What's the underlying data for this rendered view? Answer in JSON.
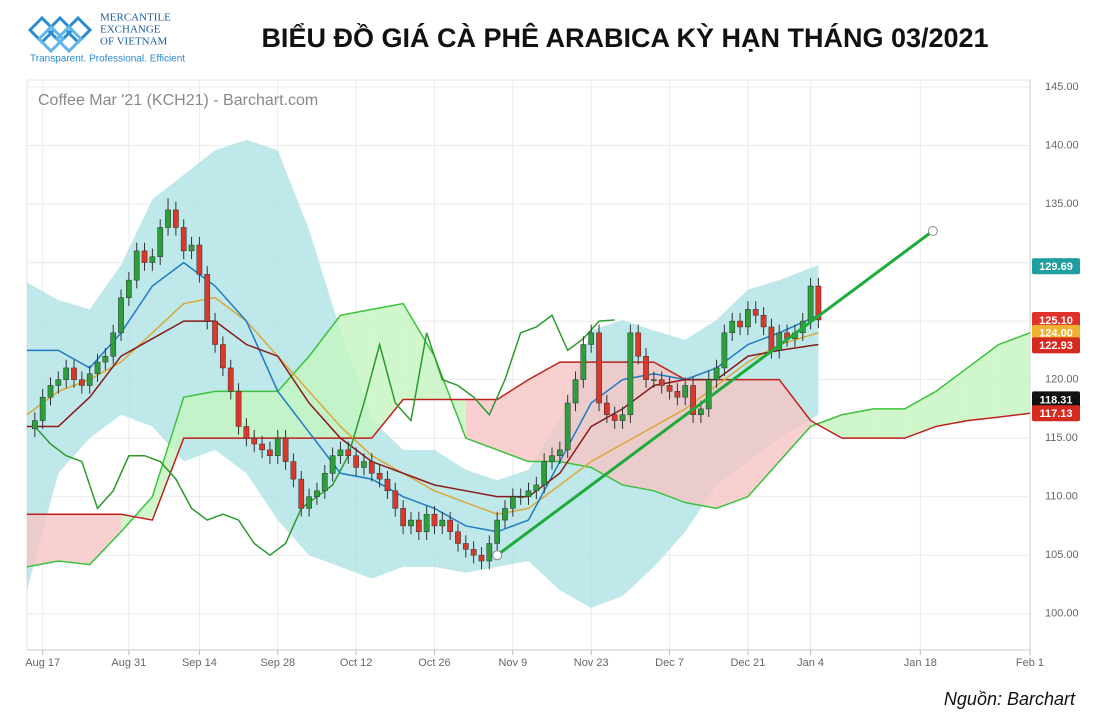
{
  "logo": {
    "line1": "MERCANTILE",
    "line2": "EXCHANGE",
    "line3": "OF VIETNAM",
    "slogan": "Transparent. Professional. Efficient"
  },
  "source": "Nguồn: Barchart",
  "chart_data": {
    "type": "candlestick",
    "title": "BIỂU ĐỒ GIÁ CÀ PHÊ ARABICA KỲ HẠN THÁNG 03/2021",
    "subtitle": "Coffee Mar '21 (KCH21) - Barchart.com",
    "xlim": [
      -2,
      126
    ],
    "xticks": [
      {
        "value": 0,
        "label": "Aug 17"
      },
      {
        "value": 11,
        "label": "Aug 31"
      },
      {
        "value": 20,
        "label": "Sep 14"
      },
      {
        "value": 30,
        "label": "Sep 28"
      },
      {
        "value": 40,
        "label": "Oct 12"
      },
      {
        "value": 50,
        "label": "Oct 26"
      },
      {
        "value": 60,
        "label": "Nov 9"
      },
      {
        "value": 70,
        "label": "Nov 23"
      },
      {
        "value": 80,
        "label": "Dec 7"
      },
      {
        "value": 90,
        "label": "Dec 21"
      },
      {
        "value": 98,
        "label": "Jan 4"
      },
      {
        "value": 112,
        "label": "Jan 18"
      },
      {
        "value": 126,
        "label": "Feb 1"
      }
    ],
    "ylim": [
      96.9,
      145.6
    ],
    "yticks": [
      {
        "value": 100,
        "label": "100.00"
      },
      {
        "value": 105,
        "label": "105.00"
      },
      {
        "value": 110,
        "label": "110.00"
      },
      {
        "value": 115,
        "label": "115.00"
      },
      {
        "value": 120,
        "label": "120.00"
      },
      {
        "value": 125,
        "label": "125.00"
      },
      {
        "value": 130,
        "label": "130.00"
      },
      {
        "value": 135,
        "label": "135.00"
      },
      {
        "value": 140,
        "label": "140.00"
      },
      {
        "value": 145,
        "label": "145.00"
      }
    ],
    "grid": true,
    "up_color": "#2e9e3c",
    "down_color": "#d9382b",
    "candles": {
      "x": [
        -1,
        0,
        1,
        2,
        3,
        4,
        5,
        6,
        7,
        8,
        9,
        10,
        11,
        12,
        13,
        14,
        15,
        16,
        17,
        18,
        19,
        20,
        21,
        22,
        23,
        24,
        25,
        26,
        27,
        28,
        29,
        30,
        31,
        32,
        33,
        34,
        35,
        36,
        37,
        38,
        39,
        40,
        41,
        42,
        43,
        44,
        45,
        46,
        47,
        48,
        49,
        50,
        51,
        52,
        53,
        54,
        55,
        56,
        57,
        58,
        59,
        60,
        61,
        62,
        63,
        64,
        65,
        66,
        67,
        68,
        69,
        70,
        71,
        72,
        73,
        74,
        75,
        76,
        77,
        78,
        79,
        80,
        81,
        82,
        83,
        84,
        85,
        86,
        87,
        88,
        89,
        90,
        91,
        92,
        93,
        94,
        95,
        96,
        97,
        98,
        99
      ],
      "open": [
        115.8,
        116.5,
        118.5,
        119.5,
        120,
        121,
        120,
        119.5,
        120.5,
        121.5,
        122,
        124,
        127,
        128.5,
        131,
        130,
        130.5,
        133,
        134.5,
        133,
        131,
        131.5,
        129,
        125,
        123,
        121,
        119,
        116,
        115,
        114.5,
        114,
        113.5,
        115,
        113,
        111.5,
        109,
        110,
        110.5,
        112,
        113.5,
        114,
        113.5,
        112.5,
        113,
        112,
        111.5,
        110.5,
        109,
        107.5,
        108,
        107,
        108.5,
        107.5,
        108,
        107,
        106,
        105.5,
        105,
        104.5,
        106,
        108,
        109,
        110,
        110,
        110.5,
        111,
        113,
        113.5,
        114,
        118,
        120,
        123,
        124,
        118,
        117,
        116.5,
        117,
        124,
        122,
        120,
        120,
        119.5,
        119,
        118.5,
        119.5,
        117,
        117.5,
        120,
        121,
        124,
        125,
        124.5,
        126,
        125.5,
        124.5,
        122.5,
        124,
        123.5,
        124,
        125,
        128
      ],
      "high": [
        117.2,
        119.2,
        120.2,
        120.7,
        121.7,
        121.7,
        120.7,
        121.2,
        122.2,
        122.7,
        124.7,
        127.7,
        129.2,
        131.7,
        131.7,
        131.2,
        133.7,
        135.5,
        135.2,
        133.7,
        132.2,
        132.2,
        129.7,
        125.7,
        123.7,
        121.7,
        119.7,
        116.7,
        115.7,
        115.2,
        114.7,
        115.7,
        115.7,
        113.7,
        112.2,
        110.7,
        111.2,
        112.7,
        114.2,
        114.7,
        114.7,
        114.2,
        113.7,
        113.7,
        112.7,
        112.2,
        111.2,
        109.7,
        108.7,
        108.7,
        109.2,
        109.2,
        108.7,
        108.7,
        107.7,
        106.7,
        106.2,
        105.7,
        106.7,
        108.7,
        109.7,
        110.7,
        110.7,
        111.2,
        111.7,
        113.7,
        114.2,
        114.7,
        118.7,
        120.7,
        123.7,
        124.7,
        124.7,
        118.7,
        117.7,
        117.7,
        124.7,
        124.7,
        122.7,
        120.7,
        120.7,
        120.2,
        119.7,
        120.2,
        120.2,
        118.2,
        120.7,
        121.7,
        124.7,
        125.7,
        125.7,
        126.7,
        126.7,
        126.2,
        125.2,
        124.7,
        124.7,
        124.7,
        125.7,
        128.7,
        128.7
      ],
      "low": [
        115.1,
        115.8,
        117.8,
        118.8,
        119.3,
        119.3,
        118.8,
        118.8,
        119.8,
        120.8,
        121.3,
        123.3,
        126.3,
        127.8,
        129.3,
        129.3,
        129.8,
        132.3,
        132.3,
        130.3,
        130.3,
        128.3,
        124.3,
        122.3,
        120.3,
        118.3,
        115.3,
        114.3,
        113.8,
        113.3,
        112.8,
        112.8,
        112.3,
        110.8,
        108.3,
        108.3,
        109.3,
        109.8,
        111.3,
        112.8,
        112.8,
        111.8,
        111.8,
        111.3,
        110.8,
        109.8,
        108.3,
        106.8,
        106.8,
        106.3,
        106.3,
        106.8,
        106.8,
        106.3,
        105.3,
        104.8,
        104.3,
        103.8,
        103.8,
        105.3,
        107.3,
        108.3,
        109.3,
        109.3,
        109.8,
        110.3,
        112.3,
        112.8,
        113.3,
        117.3,
        119.3,
        122.3,
        117.3,
        116.3,
        115.8,
        115.8,
        116.3,
        121.3,
        119.3,
        119.3,
        118.8,
        118.3,
        117.8,
        117.8,
        116.3,
        116.3,
        116.8,
        119.3,
        120.3,
        123.3,
        123.8,
        123.8,
        124.8,
        123.8,
        121.8,
        121.8,
        122.8,
        122.8,
        123.3,
        124.3,
        124.4
      ],
      "close": [
        116.5,
        118.5,
        119.5,
        120,
        121,
        120,
        119.5,
        120.5,
        121.5,
        122,
        124,
        127,
        128.5,
        131,
        130,
        130.5,
        133,
        134.5,
        133,
        131,
        131.5,
        129,
        125,
        123,
        121,
        119,
        116,
        115,
        114.5,
        114,
        113.5,
        115,
        113,
        111.5,
        109,
        110,
        110.5,
        112,
        113.5,
        114,
        113.5,
        112.5,
        113,
        112,
        111.5,
        110.5,
        109,
        107.5,
        108,
        107,
        108.5,
        107.5,
        108,
        107,
        106,
        105.5,
        105,
        104.5,
        106,
        108,
        109,
        110,
        110,
        110.5,
        111,
        113,
        113.5,
        114,
        118,
        120,
        123,
        124,
        118,
        117,
        116.5,
        117,
        124,
        122,
        120,
        120,
        119.5,
        119,
        118.5,
        119.5,
        117,
        117.5,
        120,
        121,
        124,
        125,
        124.5,
        126,
        125.5,
        124.5,
        122.5,
        124,
        123.5,
        124,
        125,
        128,
        125.1
      ]
    },
    "band": {
      "color": "#a8e0e3",
      "x": [
        -2,
        2,
        6,
        10,
        14,
        18,
        22,
        26,
        30,
        34,
        38,
        42,
        46,
        50,
        54,
        58,
        62,
        66,
        70,
        74,
        78,
        82,
        86,
        90,
        94,
        99
      ],
      "upper": [
        128.3,
        126.8,
        126,
        129.8,
        135.4,
        137.5,
        139.6,
        140.5,
        139.6,
        132.8,
        124.2,
        116.6,
        114,
        114,
        112.3,
        111.4,
        112.3,
        116.6,
        124.2,
        125.1,
        124.2,
        123.4,
        125.1,
        127.7,
        128.5,
        129.8
      ],
      "lower": [
        102,
        112,
        115,
        117,
        116,
        113,
        114,
        112,
        108,
        105,
        104,
        103,
        104,
        104,
        103.5,
        104,
        104.5,
        102,
        100.5,
        101.5,
        104,
        107,
        111,
        113,
        115,
        117
      ]
    },
    "series": [
      {
        "color": "#d9a93a",
        "x": [
          -2,
          2,
          6,
          10,
          14,
          18,
          22,
          26,
          30,
          34,
          38,
          42,
          46,
          50,
          54,
          58,
          62,
          66,
          70,
          74,
          78,
          82,
          86,
          90,
          94,
          99
        ],
        "values": [
          117,
          119,
          120,
          121.5,
          124,
          126.5,
          127,
          125,
          122,
          119,
          116,
          113.5,
          112,
          110.5,
          109.5,
          108.5,
          109,
          111,
          113,
          114.5,
          116,
          117.5,
          119.5,
          121.5,
          123,
          124
        ]
      },
      {
        "color": "#1f7bc4",
        "x": [
          -2,
          2,
          6,
          10,
          14,
          18,
          22,
          26,
          30,
          34,
          38,
          42,
          46,
          50,
          54,
          58,
          62,
          66,
          70,
          74,
          78,
          82,
          86,
          90,
          94,
          99
        ],
        "values": [
          122.5,
          122.5,
          121,
          124,
          128,
          130,
          128,
          125,
          119,
          115.5,
          112,
          111.5,
          110,
          109,
          107.5,
          107,
          108,
          113,
          118,
          120,
          120.5,
          120,
          121,
          123,
          124,
          125.5
        ]
      },
      {
        "color": "#8b1a1a",
        "x": [
          -2,
          2,
          6,
          10,
          14,
          18,
          22,
          26,
          30,
          34,
          38,
          42,
          46,
          50,
          54,
          58,
          62,
          66,
          70,
          74,
          78,
          82,
          86,
          90,
          94,
          99
        ],
        "values": [
          116,
          116,
          118.5,
          122,
          123.5,
          125,
          125,
          123,
          122,
          118,
          115,
          113,
          112,
          111,
          110.5,
          110,
          110,
          112,
          116,
          117.5,
          119.5,
          120,
          120,
          122,
          122.5,
          123
        ]
      },
      {
        "color": "#2a9a2a",
        "x": [
          -1,
          1,
          3,
          5,
          7,
          9,
          11,
          13,
          15,
          17,
          19,
          21,
          23,
          25,
          27,
          29,
          31,
          33,
          35,
          37,
          39,
          41,
          43,
          45,
          47,
          49,
          51,
          53,
          55,
          57,
          59,
          61,
          63,
          65,
          67,
          69,
          71,
          73
        ],
        "values": [
          116,
          114.5,
          113.5,
          113,
          109,
          110.5,
          113.5,
          113.5,
          113,
          111.5,
          109,
          108,
          108.5,
          108,
          106,
          105,
          106,
          109,
          110,
          111,
          113.5,
          118,
          123,
          118,
          116.5,
          124,
          120,
          119.5,
          118.5,
          117,
          120,
          124,
          124.5,
          125.5,
          122.5,
          123.5,
          125,
          125.1
        ]
      }
    ],
    "cloud": {
      "up_color": "#c4f5bf",
      "down_color": "#f6c4c4",
      "a_color": "#3cc23c",
      "b_color": "#c0201a",
      "x": [
        -2,
        2,
        6,
        10,
        14,
        18,
        22,
        26,
        30,
        34,
        38,
        42,
        46,
        50,
        54,
        58,
        62,
        66,
        70,
        74,
        78,
        82,
        86,
        90,
        94,
        98,
        102,
        106,
        110,
        114,
        118,
        122,
        126
      ],
      "a": [
        104,
        104.5,
        104.2,
        107,
        110,
        118.5,
        119,
        119,
        119,
        122,
        125.5,
        126,
        126.5,
        122,
        115,
        114,
        113,
        113,
        112.5,
        111,
        110.5,
        109.5,
        109,
        110,
        113,
        116,
        117,
        117.5,
        117.5,
        119,
        121,
        123,
        124
      ],
      "b": [
        108.5,
        108.5,
        108.5,
        108.5,
        108,
        115,
        115,
        115,
        115,
        115,
        115,
        115,
        118.3,
        118.3,
        118.3,
        118.3,
        120,
        121.5,
        121.5,
        121.5,
        121.5,
        120,
        120,
        120,
        120,
        116.5,
        115,
        115,
        115,
        116,
        116.5,
        116.8,
        117.13
      ]
    },
    "trendline": {
      "color": "#1faa3c",
      "x": [
        58,
        113.6
      ],
      "values": [
        105,
        132.7
      ]
    },
    "price_labels": [
      {
        "value": 129.69,
        "label": "129.69",
        "color": "#1d9ea0"
      },
      {
        "value": 125.1,
        "label": "125.10",
        "color": "#e0312a"
      },
      {
        "value": 124,
        "label": "124.00",
        "color": "#f0b030"
      },
      {
        "value": 122.93,
        "label": "122.93",
        "color": "#d42a20"
      },
      {
        "value": 118.31,
        "label": "118.31",
        "color": "#111111"
      },
      {
        "value": 117.13,
        "label": "117.13",
        "color": "#d42a20"
      }
    ]
  }
}
